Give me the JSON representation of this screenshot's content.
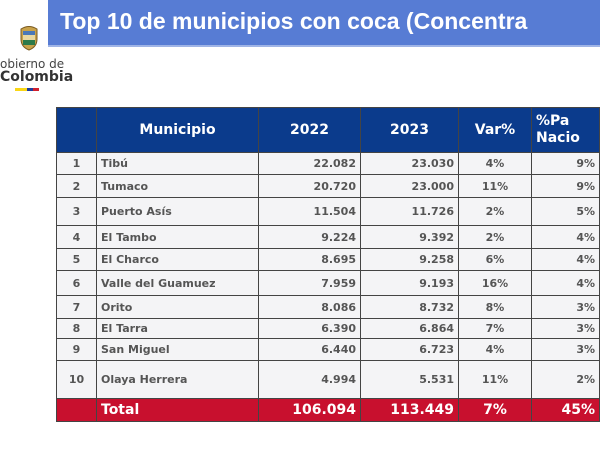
{
  "header": {
    "title": "Top 10 de municipios con coca (Concentra"
  },
  "logo": {
    "line1": "obierno de",
    "line2": "Colombia",
    "flag_colors": [
      "#f9d616",
      "#1f3c9c",
      "#d0202e"
    ]
  },
  "colors": {
    "title_bar": "#577cd4",
    "table_header": "#0b3b8c",
    "total_row": "#c8102e"
  },
  "table": {
    "columns": [
      "",
      "Municipio",
      "2022",
      "2023",
      "Var%",
      "%Pa\nNacio"
    ],
    "col_labels": {
      "municipio": "Municipio",
      "y2022": "2022",
      "y2023": "2023",
      "var": "Var%",
      "part1": "%Pa",
      "part2": "Nacio"
    },
    "rows": [
      {
        "n": "1",
        "municipio": "Tibú",
        "y2022": "22.082",
        "y2023": "23.030",
        "var": "4%",
        "part": "9%"
      },
      {
        "n": "2",
        "municipio": "Tumaco",
        "y2022": "20.720",
        "y2023": "23.000",
        "var": "11%",
        "part": "9%"
      },
      {
        "n": "3",
        "municipio": "Puerto Asís",
        "y2022": "11.504",
        "y2023": "11.726",
        "var": "2%",
        "part": "5%"
      },
      {
        "n": "4",
        "municipio": "El Tambo",
        "y2022": "9.224",
        "y2023": "9.392",
        "var": "2%",
        "part": "4%"
      },
      {
        "n": "5",
        "municipio": "El Charco",
        "y2022": "8.695",
        "y2023": "9.258",
        "var": "6%",
        "part": "4%"
      },
      {
        "n": "6",
        "municipio": "Valle del Guamuez",
        "y2022": "7.959",
        "y2023": "9.193",
        "var": "16%",
        "part": "4%"
      },
      {
        "n": "7",
        "municipio": "Orito",
        "y2022": "8.086",
        "y2023": "8.732",
        "var": "8%",
        "part": "3%"
      },
      {
        "n": "8",
        "municipio": "El Tarra",
        "y2022": "6.390",
        "y2023": "6.864",
        "var": "7%",
        "part": "3%"
      },
      {
        "n": "9",
        "municipio": "San Miguel",
        "y2022": "6.440",
        "y2023": "6.723",
        "var": "4%",
        "part": "3%"
      },
      {
        "n": "10",
        "municipio": "Olaya Herrera",
        "y2022": "4.994",
        "y2023": "5.531",
        "var": "11%",
        "part": "2%"
      }
    ],
    "total": {
      "label": "Total",
      "y2022": "106.094",
      "y2023": "113.449",
      "var": "7%",
      "part": "45%"
    }
  }
}
